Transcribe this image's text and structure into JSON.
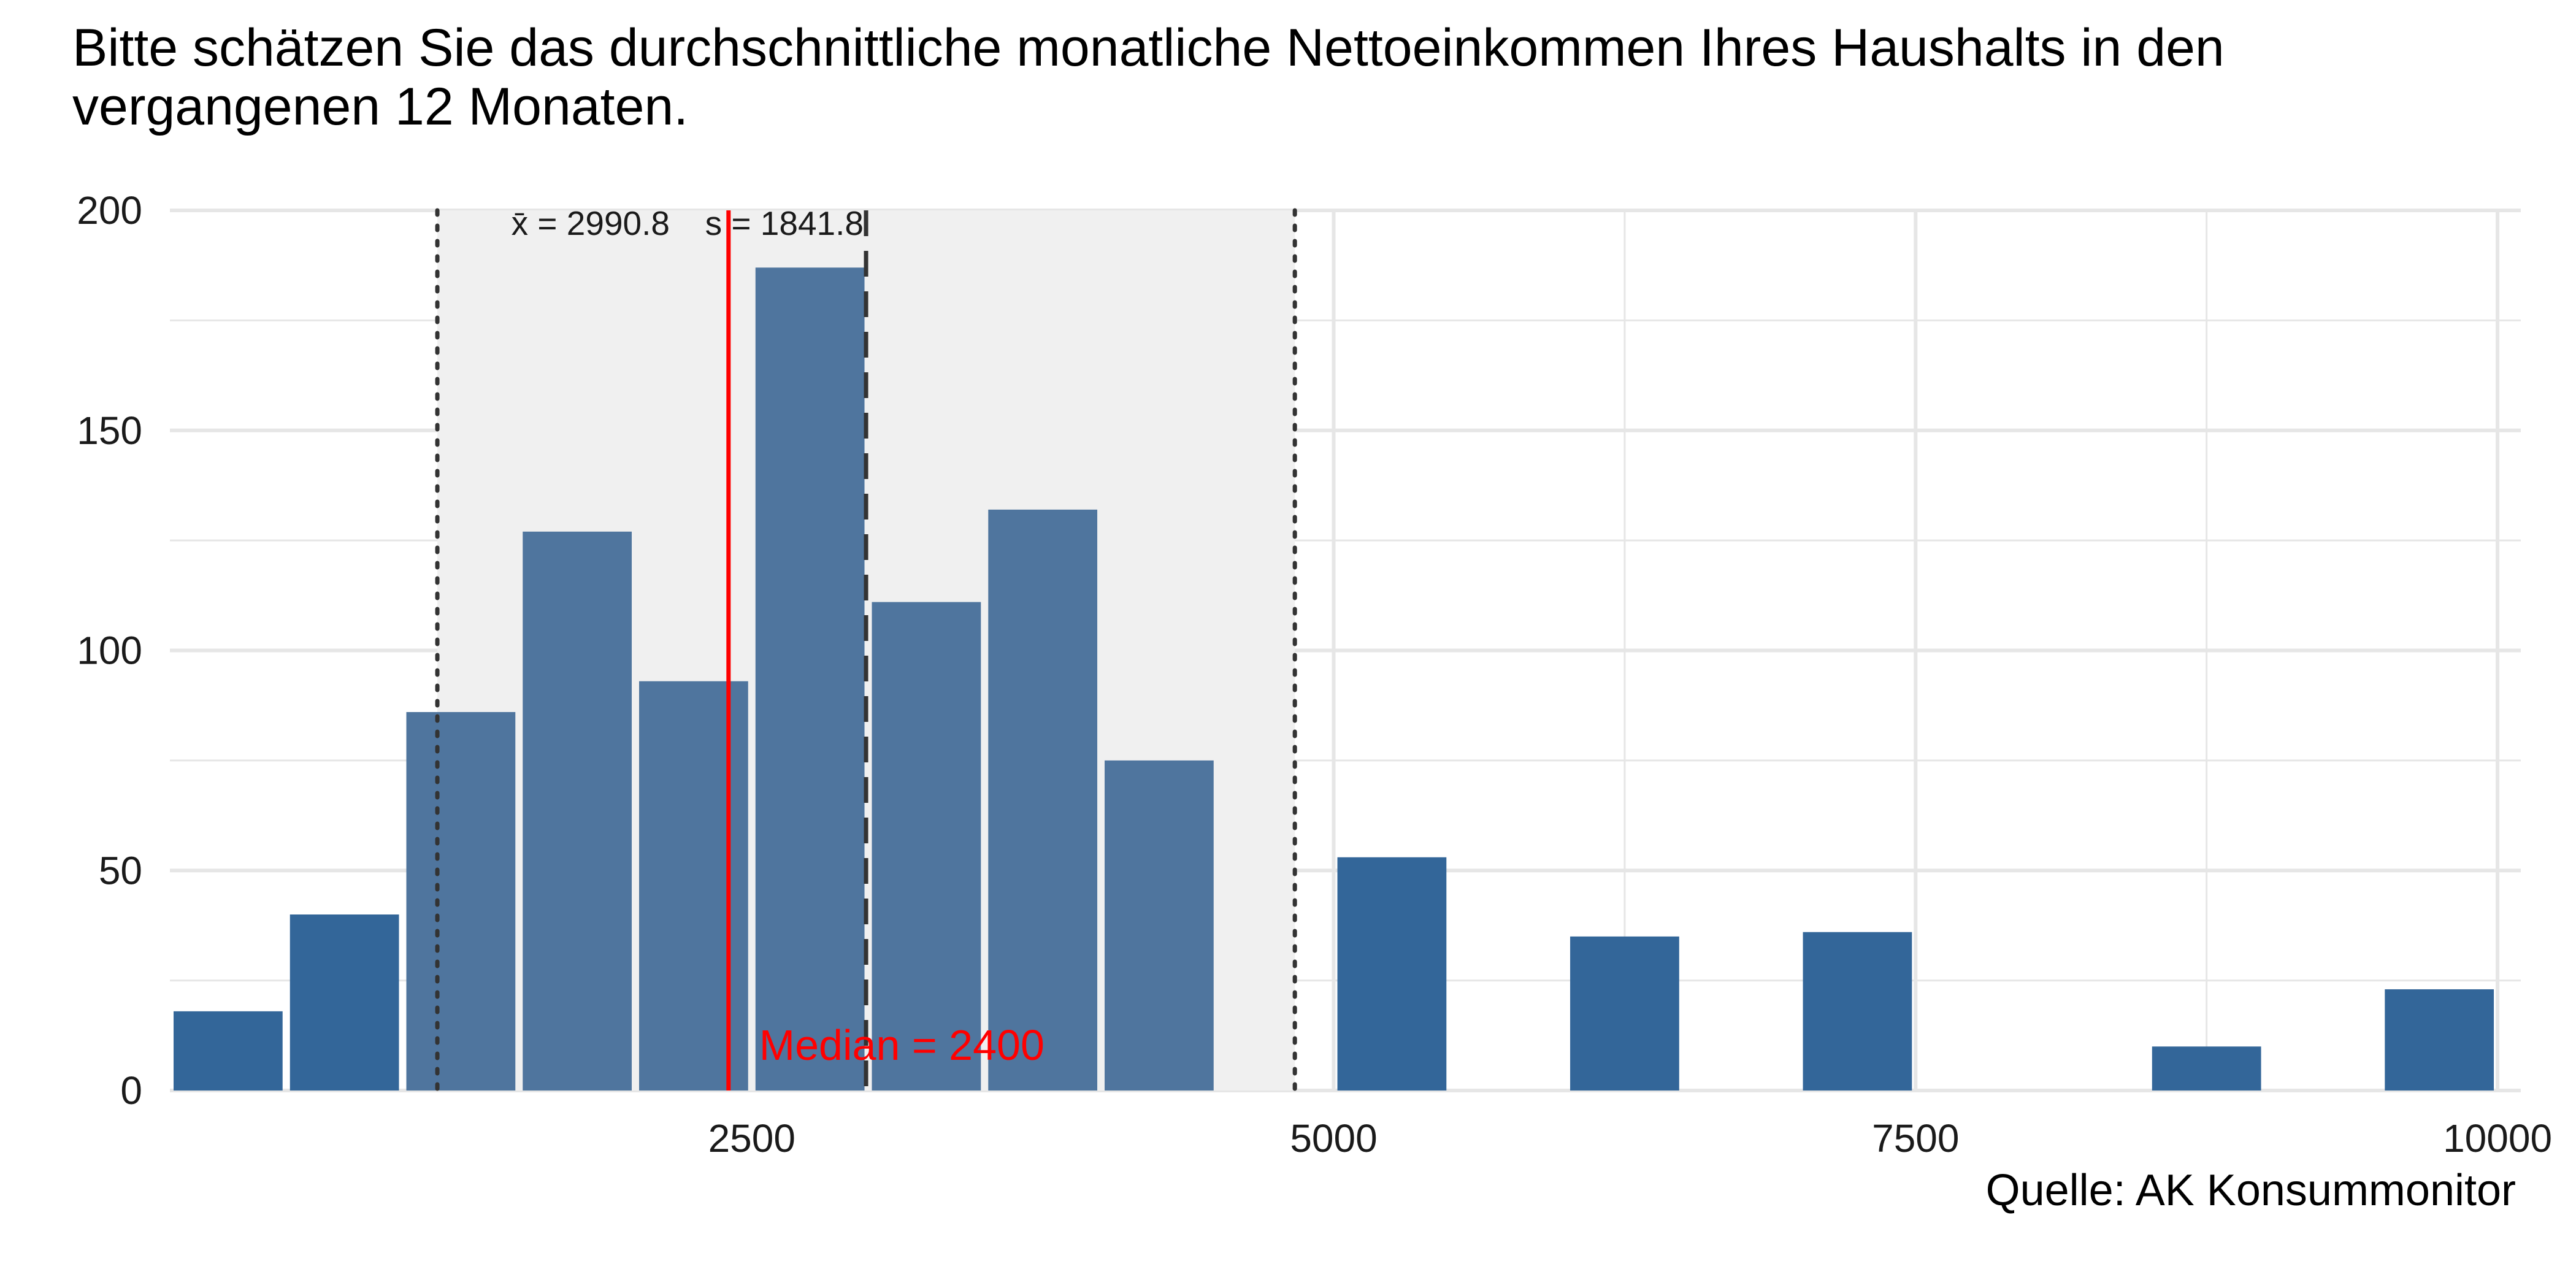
{
  "title": "Bitte schätzen Sie das durchschnittliche monatliche Nettoeinkommen Ihres Haushalts in den vergangenen 12 Monaten.",
  "caption": "Quelle: AK Konsummonitor",
  "colors": {
    "bar_in_band": "#4f759e",
    "bar_outside": "#336699",
    "band": "#f0f0f0",
    "median": "#ff0000",
    "grid": "#e6e6e6",
    "ref_line": "#333333"
  },
  "chart_data": {
    "type": "bar",
    "x_range": [
      0,
      10100
    ],
    "y_range": [
      0,
      200
    ],
    "bin_width": 500,
    "bins": [
      {
        "x": 250,
        "count": 18
      },
      {
        "x": 750,
        "count": 40
      },
      {
        "x": 1250,
        "count": 86
      },
      {
        "x": 1750,
        "count": 127
      },
      {
        "x": 2250,
        "count": 93
      },
      {
        "x": 2750,
        "count": 187
      },
      {
        "x": 3250,
        "count": 111
      },
      {
        "x": 3750,
        "count": 132
      },
      {
        "x": 4250,
        "count": 75
      },
      {
        "x": 5250,
        "count": 53
      },
      {
        "x": 6250,
        "count": 35
      },
      {
        "x": 7250,
        "count": 36
      },
      {
        "x": 8750,
        "count": 10
      },
      {
        "x": 9750,
        "count": 23
      }
    ],
    "x_ticks": [
      2500,
      5000,
      7500,
      10000
    ],
    "y_ticks": [
      0,
      50,
      100,
      150,
      200
    ],
    "mean": 2990.8,
    "sd": 1841.8,
    "median": 2400,
    "sd_band": [
      1149,
      4833
    ],
    "mean_label": "x̄ = 2990.8",
    "sd_label": "s = 1841.8",
    "median_label": "Median = 2400",
    "grid": true
  }
}
